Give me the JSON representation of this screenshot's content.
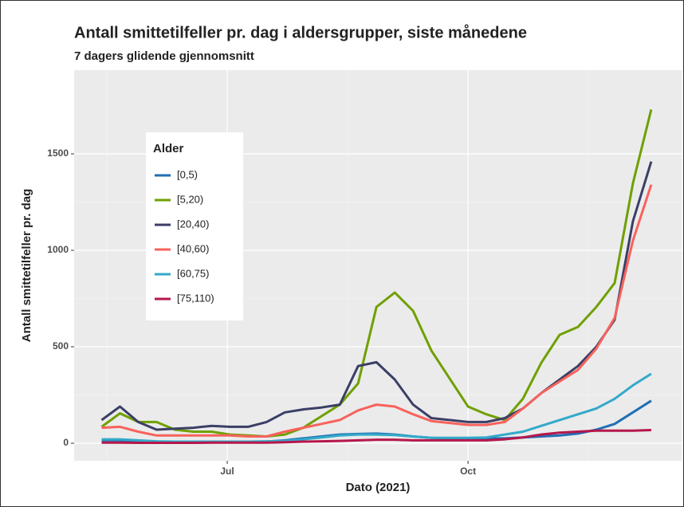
{
  "chart_data": {
    "type": "line",
    "title": "Antall smittetilfeller pr. dag i aldersgrupper, siste månedene",
    "subtitle": "7 dagers glidende gjennomsnitt",
    "x_label": "Dato (2021)",
    "y_label": "Antall smittetilfeller pr. dag",
    "x": [
      134,
      141,
      148,
      155,
      162,
      169,
      176,
      183,
      190,
      197,
      204,
      211,
      218,
      225,
      232,
      239,
      246,
      253,
      260,
      267,
      274,
      281,
      288,
      295,
      302,
      309,
      316,
      323,
      330,
      337,
      344
    ],
    "xlim": [
      123.5,
      355.6
    ],
    "xticks": [
      {
        "value": 182,
        "label": "Jul"
      },
      {
        "value": 274,
        "label": "Oct"
      }
    ],
    "ylim": [
      -91,
      1934
    ],
    "yticks": [
      0,
      500,
      1000,
      1500
    ],
    "grid": true,
    "legend": {
      "title": "Alder",
      "position": "top-left"
    },
    "series": [
      {
        "name": "[0,5)",
        "color": "#1f6fb4",
        "values": [
          15,
          15,
          12,
          8,
          6,
          5,
          5,
          5,
          5,
          8,
          15,
          25,
          35,
          45,
          48,
          50,
          45,
          35,
          28,
          25,
          25,
          25,
          25,
          30,
          35,
          40,
          50,
          70,
          100,
          160,
          220
        ]
      },
      {
        "name": "[5,20)",
        "color": "#6fa000",
        "values": [
          85,
          155,
          110,
          110,
          70,
          60,
          60,
          45,
          40,
          35,
          45,
          80,
          140,
          200,
          310,
          706,
          781,
          686,
          480,
          335,
          190,
          150,
          120,
          231,
          417,
          562,
          603,
          706,
          830,
          1347,
          1730
        ]
      },
      {
        "name": "[20,40)",
        "color": "#3b3f66",
        "values": [
          120,
          190,
          110,
          70,
          75,
          80,
          90,
          85,
          85,
          110,
          160,
          175,
          185,
          200,
          400,
          420,
          330,
          200,
          130,
          120,
          110,
          110,
          130,
          180,
          260,
          330,
          400,
          500,
          640,
          1150,
          1460
        ]
      },
      {
        "name": "[40,60)",
        "color": "#f8625c",
        "values": [
          80,
          85,
          60,
          40,
          40,
          40,
          40,
          40,
          35,
          35,
          60,
          80,
          100,
          120,
          170,
          200,
          190,
          150,
          115,
          105,
          95,
          95,
          110,
          180,
          260,
          320,
          380,
          490,
          650,
          1050,
          1340
        ]
      },
      {
        "name": "[60,75)",
        "color": "#33a9c9",
        "values": [
          20,
          20,
          15,
          10,
          8,
          8,
          8,
          8,
          8,
          10,
          12,
          20,
          30,
          40,
          45,
          45,
          42,
          35,
          28,
          28,
          28,
          30,
          45,
          60,
          90,
          120,
          150,
          180,
          230,
          300,
          360
        ]
      },
      {
        "name": "[75,110)",
        "color": "#b5174b",
        "values": [
          3,
          3,
          2,
          2,
          2,
          2,
          3,
          3,
          3,
          3,
          5,
          8,
          10,
          12,
          15,
          18,
          18,
          15,
          15,
          15,
          15,
          15,
          20,
          30,
          45,
          55,
          60,
          65,
          65,
          65,
          68
        ]
      }
    ]
  }
}
